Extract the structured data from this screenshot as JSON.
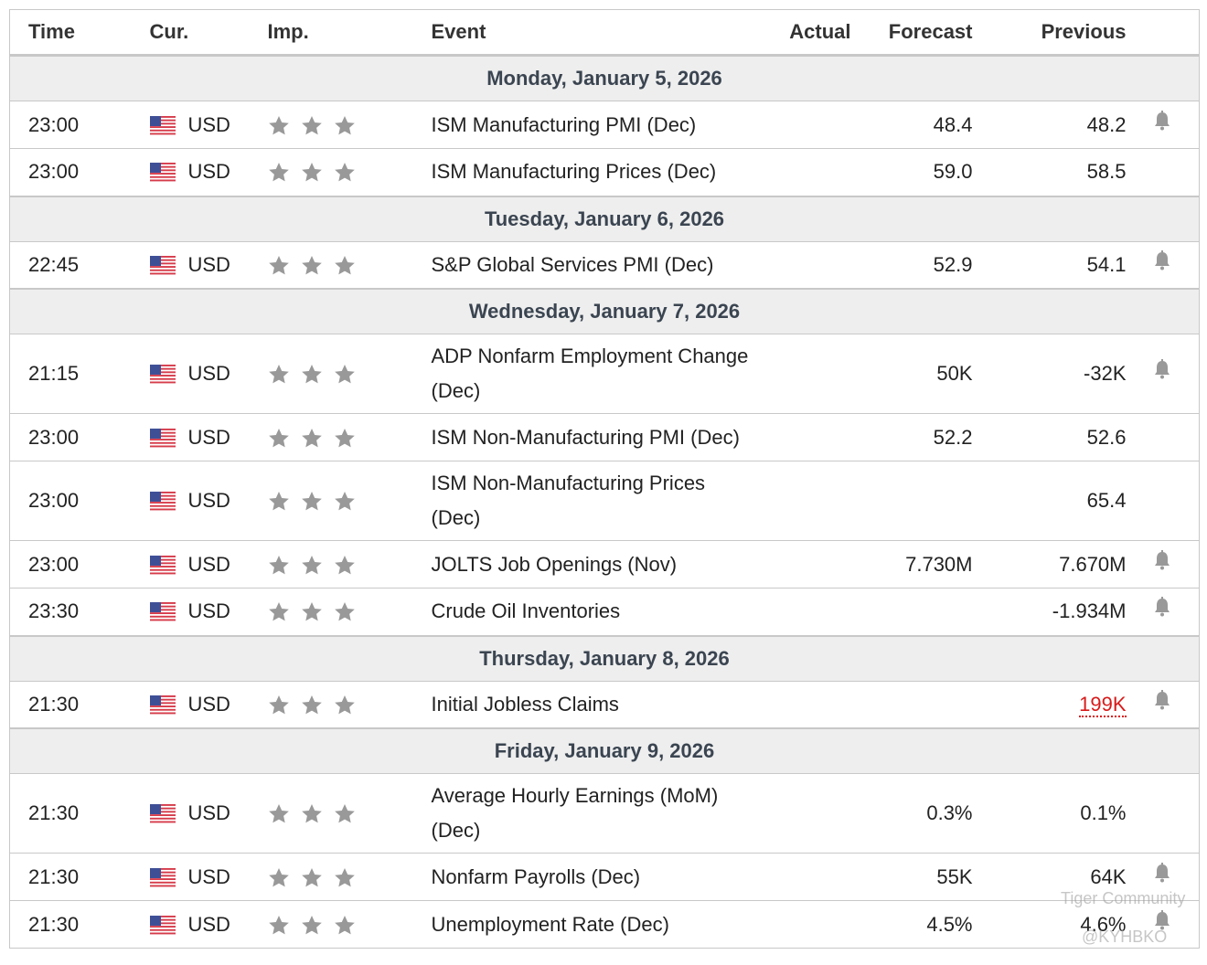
{
  "columns": [
    "Time",
    "Cur.",
    "Imp.",
    "Event",
    "Actual",
    "Forecast",
    "Previous"
  ],
  "days": [
    {
      "date": "Monday, January 5, 2026",
      "events": [
        {
          "time": "23:00",
          "currency": "USD",
          "event": "ISM Manufacturing PMI (Dec)",
          "actual": null,
          "forecast": "48.4",
          "previous": "48.2",
          "alert": true
        },
        {
          "time": "23:00",
          "currency": "USD",
          "event": "ISM Manufacturing Prices (Dec)",
          "actual": null,
          "forecast": "59.0",
          "previous": "58.5",
          "alert": false
        }
      ]
    },
    {
      "date": "Tuesday, January 6, 2026",
      "events": [
        {
          "time": "22:45",
          "currency": "USD",
          "event": "S&P Global Services PMI (Dec)",
          "actual": null,
          "forecast": "52.9",
          "previous": "54.1",
          "alert": true
        }
      ]
    },
    {
      "date": "Wednesday, January 7, 2026",
      "events": [
        {
          "time": "21:15",
          "currency": "USD",
          "event": "ADP Nonfarm Employment Change (Dec)",
          "actual": null,
          "forecast": "50K",
          "previous": "-32K",
          "alert": true
        },
        {
          "time": "23:00",
          "currency": "USD",
          "event": "ISM Non-Manufacturing PMI (Dec)",
          "actual": null,
          "forecast": "52.2",
          "previous": "52.6",
          "alert": false
        },
        {
          "time": "23:00",
          "currency": "USD",
          "event": "ISM Non-Manufacturing Prices (Dec)",
          "actual": null,
          "forecast": null,
          "previous": "65.4",
          "alert": false
        },
        {
          "time": "23:00",
          "currency": "USD",
          "event": "JOLTS Job Openings (Nov)",
          "actual": null,
          "forecast": "7.730M",
          "previous": "7.670M",
          "alert": true
        },
        {
          "time": "23:30",
          "currency": "USD",
          "event": "Crude Oil Inventories",
          "actual": null,
          "forecast": null,
          "previous": "-1.934M",
          "alert": true
        }
      ]
    },
    {
      "date": "Thursday, January 8, 2026",
      "events": [
        {
          "time": "21:30",
          "currency": "USD",
          "event": "Initial Jobless Claims",
          "actual": null,
          "forecast": null,
          "previous": "199K",
          "previous_color": "#d91a1a",
          "alert": true
        }
      ]
    },
    {
      "date": "Friday, January 9, 2026",
      "events": [
        {
          "time": "21:30",
          "currency": "USD",
          "event": "Average Hourly Earnings (MoM) (Dec)",
          "actual": null,
          "forecast": "0.3%",
          "previous": "0.1%",
          "alert": false
        },
        {
          "time": "21:30",
          "currency": "USD",
          "event": "Nonfarm Payrolls (Dec)",
          "actual": null,
          "forecast": "55K",
          "previous": "64K",
          "alert": true
        },
        {
          "time": "21:30",
          "currency": "USD",
          "event": "Unemployment Rate (Dec)",
          "actual": null,
          "forecast": "4.5%",
          "previous": "4.6%",
          "alert": true
        }
      ]
    }
  ],
  "watermark": {
    "brand": "Tiger Community",
    "handle": "@KYHBKO"
  }
}
